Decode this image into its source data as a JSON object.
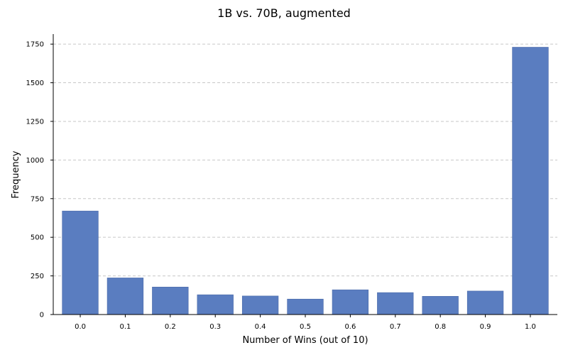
{
  "chart_data": {
    "type": "bar",
    "title": "1B vs. 70B, augmented",
    "xlabel": "Number of Wins (out of 10)",
    "ylabel": "Frequency",
    "categories": [
      "0.0",
      "0.1",
      "0.2",
      "0.3",
      "0.4",
      "0.5",
      "0.6",
      "0.7",
      "0.8",
      "0.9",
      "1.0"
    ],
    "values": [
      670,
      237,
      178,
      128,
      120,
      100,
      160,
      142,
      118,
      152,
      1730
    ],
    "ylim": [
      0,
      1815
    ],
    "yticks": [
      0,
      250,
      500,
      750,
      1000,
      1250,
      1500,
      1750
    ],
    "grid": "y-dashed",
    "bar_color": "#5a7dc0",
    "grid_color": "#c7c7c7"
  }
}
